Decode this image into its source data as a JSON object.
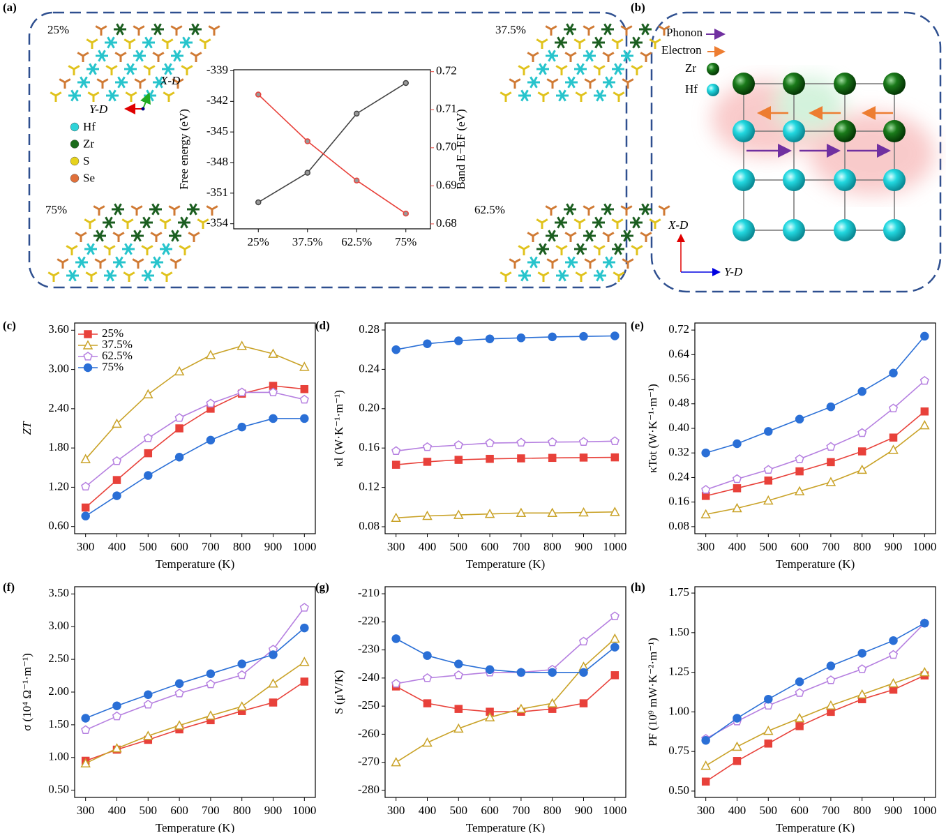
{
  "chart_data": [
    {
      "type": "line",
      "label": "(a)",
      "categories": [
        "25%",
        "37.5%",
        "62.5%",
        "75%"
      ],
      "ylabel": "Free energy (eV)",
      "y2label": "Band E−EF (eV)",
      "ylim": [
        -354.5,
        -338.9
      ],
      "yticks": [
        -354,
        -351,
        -348,
        -345,
        -342,
        -339
      ],
      "y2lim": [
        0.6787,
        0.7205
      ],
      "y2ticks": [
        0.68,
        0.69,
        {
          "value": 0.7,
          "label": "0.70"
        },
        0.71,
        0.72
      ],
      "series": [
        {
          "color": "#444444",
          "marker": "circle-small",
          "values": [
            -351.9,
            -349.0,
            -343.2,
            -340.2
          ]
        },
        {
          "color": "#e8413a",
          "marker": "circle-small",
          "axis": "y2",
          "values": [
            0.714,
            0.7017,
            0.6914,
            0.6827
          ]
        }
      ],
      "structures": [
        "25%",
        "37.5%",
        "75%",
        "62.5%"
      ],
      "atoms": [
        "Hf",
        "Zr",
        "S",
        "Se"
      ],
      "atom_colors": [
        "#2fd3d8",
        "#1b6b1b",
        "#e6d21c",
        "#e0703a"
      ],
      "directions": [
        "X-D",
        "Y-D"
      ]
    },
    {
      "type": "diagram",
      "label": "(b)",
      "carriers": [
        "Phonon",
        "Electron"
      ],
      "carrier_colors": [
        "#7030a0",
        "#ed7d31"
      ],
      "atoms": [
        "Zr",
        "Hf"
      ],
      "atom_colors": [
        "#1b6b1b",
        "#2fd3d8"
      ],
      "directions": [
        "X-D",
        "Y-D"
      ]
    },
    {
      "type": "line",
      "label": "(c)",
      "xlabel": "Temperature (K)",
      "ylabel": "ZT",
      "xlim": [
        265,
        1035
      ],
      "xticks": [
        300,
        400,
        500,
        600,
        700,
        800,
        900,
        1000
      ],
      "ylim": [
        0.49,
        3.71
      ],
      "yticks": [
        {
          "value": 0.6,
          "label": "0.60"
        },
        {
          "value": 1.2,
          "label": "1.20"
        },
        {
          "value": 1.8,
          "label": "1.80"
        },
        {
          "value": 2.4,
          "label": "2.40"
        },
        {
          "value": 3,
          "label": "3.00"
        },
        {
          "value": 3.6,
          "label": "3.60"
        }
      ],
      "legend": "upper left",
      "x": [
        300,
        400,
        500,
        600,
        700,
        800,
        900,
        1000
      ],
      "series": [
        {
          "name": "25%",
          "color": "#e8413a",
          "marker": "square",
          "values": [
            0.89,
            1.31,
            1.72,
            2.1,
            2.4,
            2.63,
            2.75,
            2.7
          ]
        },
        {
          "name": "37.5%",
          "color": "#c9a227",
          "marker": "triangle",
          "values": [
            1.63,
            2.17,
            2.62,
            2.97,
            3.22,
            3.36,
            3.24,
            3.04
          ]
        },
        {
          "name": "62.5%",
          "color": "#b57fe0",
          "marker": "pentagon",
          "values": [
            1.21,
            1.6,
            1.95,
            2.26,
            2.48,
            2.65,
            2.65,
            2.54
          ]
        },
        {
          "name": "75%",
          "color": "#2a6fd6",
          "marker": "circle",
          "values": [
            0.76,
            1.07,
            1.38,
            1.66,
            1.92,
            2.12,
            2.25,
            2.25
          ]
        }
      ]
    },
    {
      "type": "line",
      "label": "(d)",
      "xlabel": "Temperature (K)",
      "ylabel": "κl (W·K⁻¹·m⁻¹)",
      "xlim": [
        265,
        1035
      ],
      "xticks": [
        300,
        400,
        500,
        600,
        700,
        800,
        900,
        1000
      ],
      "ylim": [
        0.0729,
        0.2871
      ],
      "yticks": [
        0.08,
        0.12,
        0.16,
        {
          "value": 0.2,
          "label": "0.20"
        },
        0.24,
        0.28
      ],
      "x": [
        300,
        400,
        500,
        600,
        700,
        800,
        900,
        1000
      ],
      "series": [
        {
          "color": "#e8413a",
          "marker": "square",
          "values": [
            0.143,
            0.146,
            0.148,
            0.149,
            0.1495,
            0.15,
            0.1503,
            0.1505
          ]
        },
        {
          "color": "#c9a227",
          "marker": "triangle",
          "values": [
            0.089,
            0.091,
            0.092,
            0.093,
            0.094,
            0.094,
            0.0945,
            0.095
          ]
        },
        {
          "color": "#b57fe0",
          "marker": "pentagon",
          "values": [
            0.157,
            0.161,
            0.163,
            0.165,
            0.1655,
            0.166,
            0.1663,
            0.167
          ]
        },
        {
          "color": "#2a6fd6",
          "marker": "circle",
          "values": [
            0.26,
            0.266,
            0.269,
            0.271,
            0.272,
            0.273,
            0.2735,
            0.274
          ]
        }
      ]
    },
    {
      "type": "line",
      "label": "(e)",
      "xlabel": "Temperature (K)",
      "ylabel": "κTot (W·K⁻¹·m⁻¹)",
      "xlim": [
        265,
        1035
      ],
      "xticks": [
        300,
        400,
        500,
        600,
        700,
        800,
        900,
        1000
      ],
      "ylim": [
        0.057,
        0.743
      ],
      "yticks": [
        0.08,
        0.16,
        0.24,
        0.32,
        {
          "value": 0.4,
          "label": "0.40"
        },
        0.48,
        0.56,
        0.64,
        0.72
      ],
      "x": [
        300,
        400,
        500,
        600,
        700,
        800,
        900,
        1000
      ],
      "series": [
        {
          "color": "#e8413a",
          "marker": "square",
          "values": [
            0.18,
            0.205,
            0.23,
            0.26,
            0.29,
            0.325,
            0.37,
            0.455
          ]
        },
        {
          "color": "#c9a227",
          "marker": "triangle",
          "values": [
            0.12,
            0.14,
            0.165,
            0.195,
            0.225,
            0.265,
            0.33,
            0.41
          ]
        },
        {
          "color": "#b57fe0",
          "marker": "pentagon",
          "values": [
            0.2,
            0.235,
            0.265,
            0.3,
            0.34,
            0.385,
            0.465,
            0.555
          ]
        },
        {
          "color": "#2a6fd6",
          "marker": "circle",
          "values": [
            0.32,
            0.35,
            0.39,
            0.43,
            0.47,
            0.52,
            0.58,
            0.7
          ]
        }
      ]
    },
    {
      "type": "line",
      "label": "(f)",
      "xlabel": "Temperature (K)",
      "ylabel": "σ (10⁴ Ω⁻¹·m⁻¹)",
      "xlim": [
        265,
        1035
      ],
      "xticks": [
        300,
        400,
        500,
        600,
        700,
        800,
        900,
        1000
      ],
      "ylim": [
        0.39,
        3.61
      ],
      "yticks": [
        {
          "value": 0.5,
          "label": "0.50"
        },
        {
          "value": 1,
          "label": "1.00"
        },
        {
          "value": 1.5,
          "label": "1.50"
        },
        {
          "value": 2,
          "label": "2.00"
        },
        {
          "value": 2.5,
          "label": "2.50"
        },
        {
          "value": 3,
          "label": "3.00"
        },
        {
          "value": 3.5,
          "label": "3.50"
        }
      ],
      "x": [
        300,
        400,
        500,
        600,
        700,
        800,
        900,
        1000
      ],
      "series": [
        {
          "color": "#e8413a",
          "marker": "square",
          "values": [
            0.95,
            1.12,
            1.27,
            1.43,
            1.57,
            1.71,
            1.84,
            2.16
          ]
        },
        {
          "color": "#c9a227",
          "marker": "triangle",
          "values": [
            0.91,
            1.14,
            1.33,
            1.49,
            1.64,
            1.78,
            2.13,
            2.46
          ]
        },
        {
          "color": "#b57fe0",
          "marker": "pentagon",
          "values": [
            1.42,
            1.63,
            1.81,
            1.98,
            2.12,
            2.26,
            2.65,
            3.29
          ]
        },
        {
          "color": "#2a6fd6",
          "marker": "circle",
          "values": [
            1.6,
            1.79,
            1.96,
            2.13,
            2.28,
            2.43,
            2.57,
            2.98
          ]
        }
      ]
    },
    {
      "type": "line",
      "label": "(g)",
      "xlabel": "Temperature (K)",
      "ylabel": "S (μV/K)",
      "xlim": [
        265,
        1035
      ],
      "xticks": [
        300,
        400,
        500,
        600,
        700,
        800,
        900,
        1000
      ],
      "ylim": [
        -282.5,
        -207.5
      ],
      "yticks": [
        -280,
        -270,
        -260,
        -250,
        -240,
        -230,
        -220,
        -210
      ],
      "x": [
        300,
        400,
        500,
        600,
        700,
        800,
        900,
        1000
      ],
      "series": [
        {
          "color": "#e8413a",
          "marker": "square",
          "values": [
            -243,
            -249,
            -251,
            -252,
            -252,
            -251,
            -249,
            -239
          ]
        },
        {
          "color": "#c9a227",
          "marker": "triangle",
          "values": [
            -270,
            -263,
            -258,
            -254,
            -251,
            -249,
            -236,
            -226
          ]
        },
        {
          "color": "#b57fe0",
          "marker": "pentagon",
          "values": [
            -242,
            -240,
            -239,
            -238,
            -238,
            -237,
            -227,
            -218
          ]
        },
        {
          "color": "#2a6fd6",
          "marker": "circle",
          "values": [
            -226,
            -232,
            -235,
            -237,
            -238,
            -238,
            -238,
            -229
          ]
        }
      ]
    },
    {
      "type": "line",
      "label": "(h)",
      "xlabel": "Temperature (K)",
      "ylabel": "PF (10⁹ mW·K⁻²·m⁻¹)",
      "xlim": [
        265,
        1035
      ],
      "xticks": [
        300,
        400,
        500,
        600,
        700,
        800,
        900,
        1000
      ],
      "ylim": [
        0.46,
        1.79
      ],
      "yticks": [
        {
          "value": 0.5,
          "label": "0.50"
        },
        0.75,
        {
          "value": 1,
          "label": "1.00"
        },
        1.25,
        {
          "value": 1.5,
          "label": "1.50"
        },
        1.75
      ],
      "x": [
        300,
        400,
        500,
        600,
        700,
        800,
        900,
        1000
      ],
      "series": [
        {
          "color": "#e8413a",
          "marker": "square",
          "values": [
            0.56,
            0.69,
            0.8,
            0.91,
            1.0,
            1.08,
            1.14,
            1.23
          ]
        },
        {
          "color": "#c9a227",
          "marker": "triangle",
          "values": [
            0.66,
            0.78,
            0.88,
            0.96,
            1.04,
            1.11,
            1.18,
            1.25
          ]
        },
        {
          "color": "#b57fe0",
          "marker": "pentagon",
          "values": [
            0.83,
            0.94,
            1.04,
            1.12,
            1.2,
            1.27,
            1.36,
            1.56
          ]
        },
        {
          "color": "#2a6fd6",
          "marker": "circle",
          "values": [
            0.82,
            0.96,
            1.08,
            1.19,
            1.29,
            1.37,
            1.45,
            1.56
          ]
        }
      ]
    }
  ]
}
